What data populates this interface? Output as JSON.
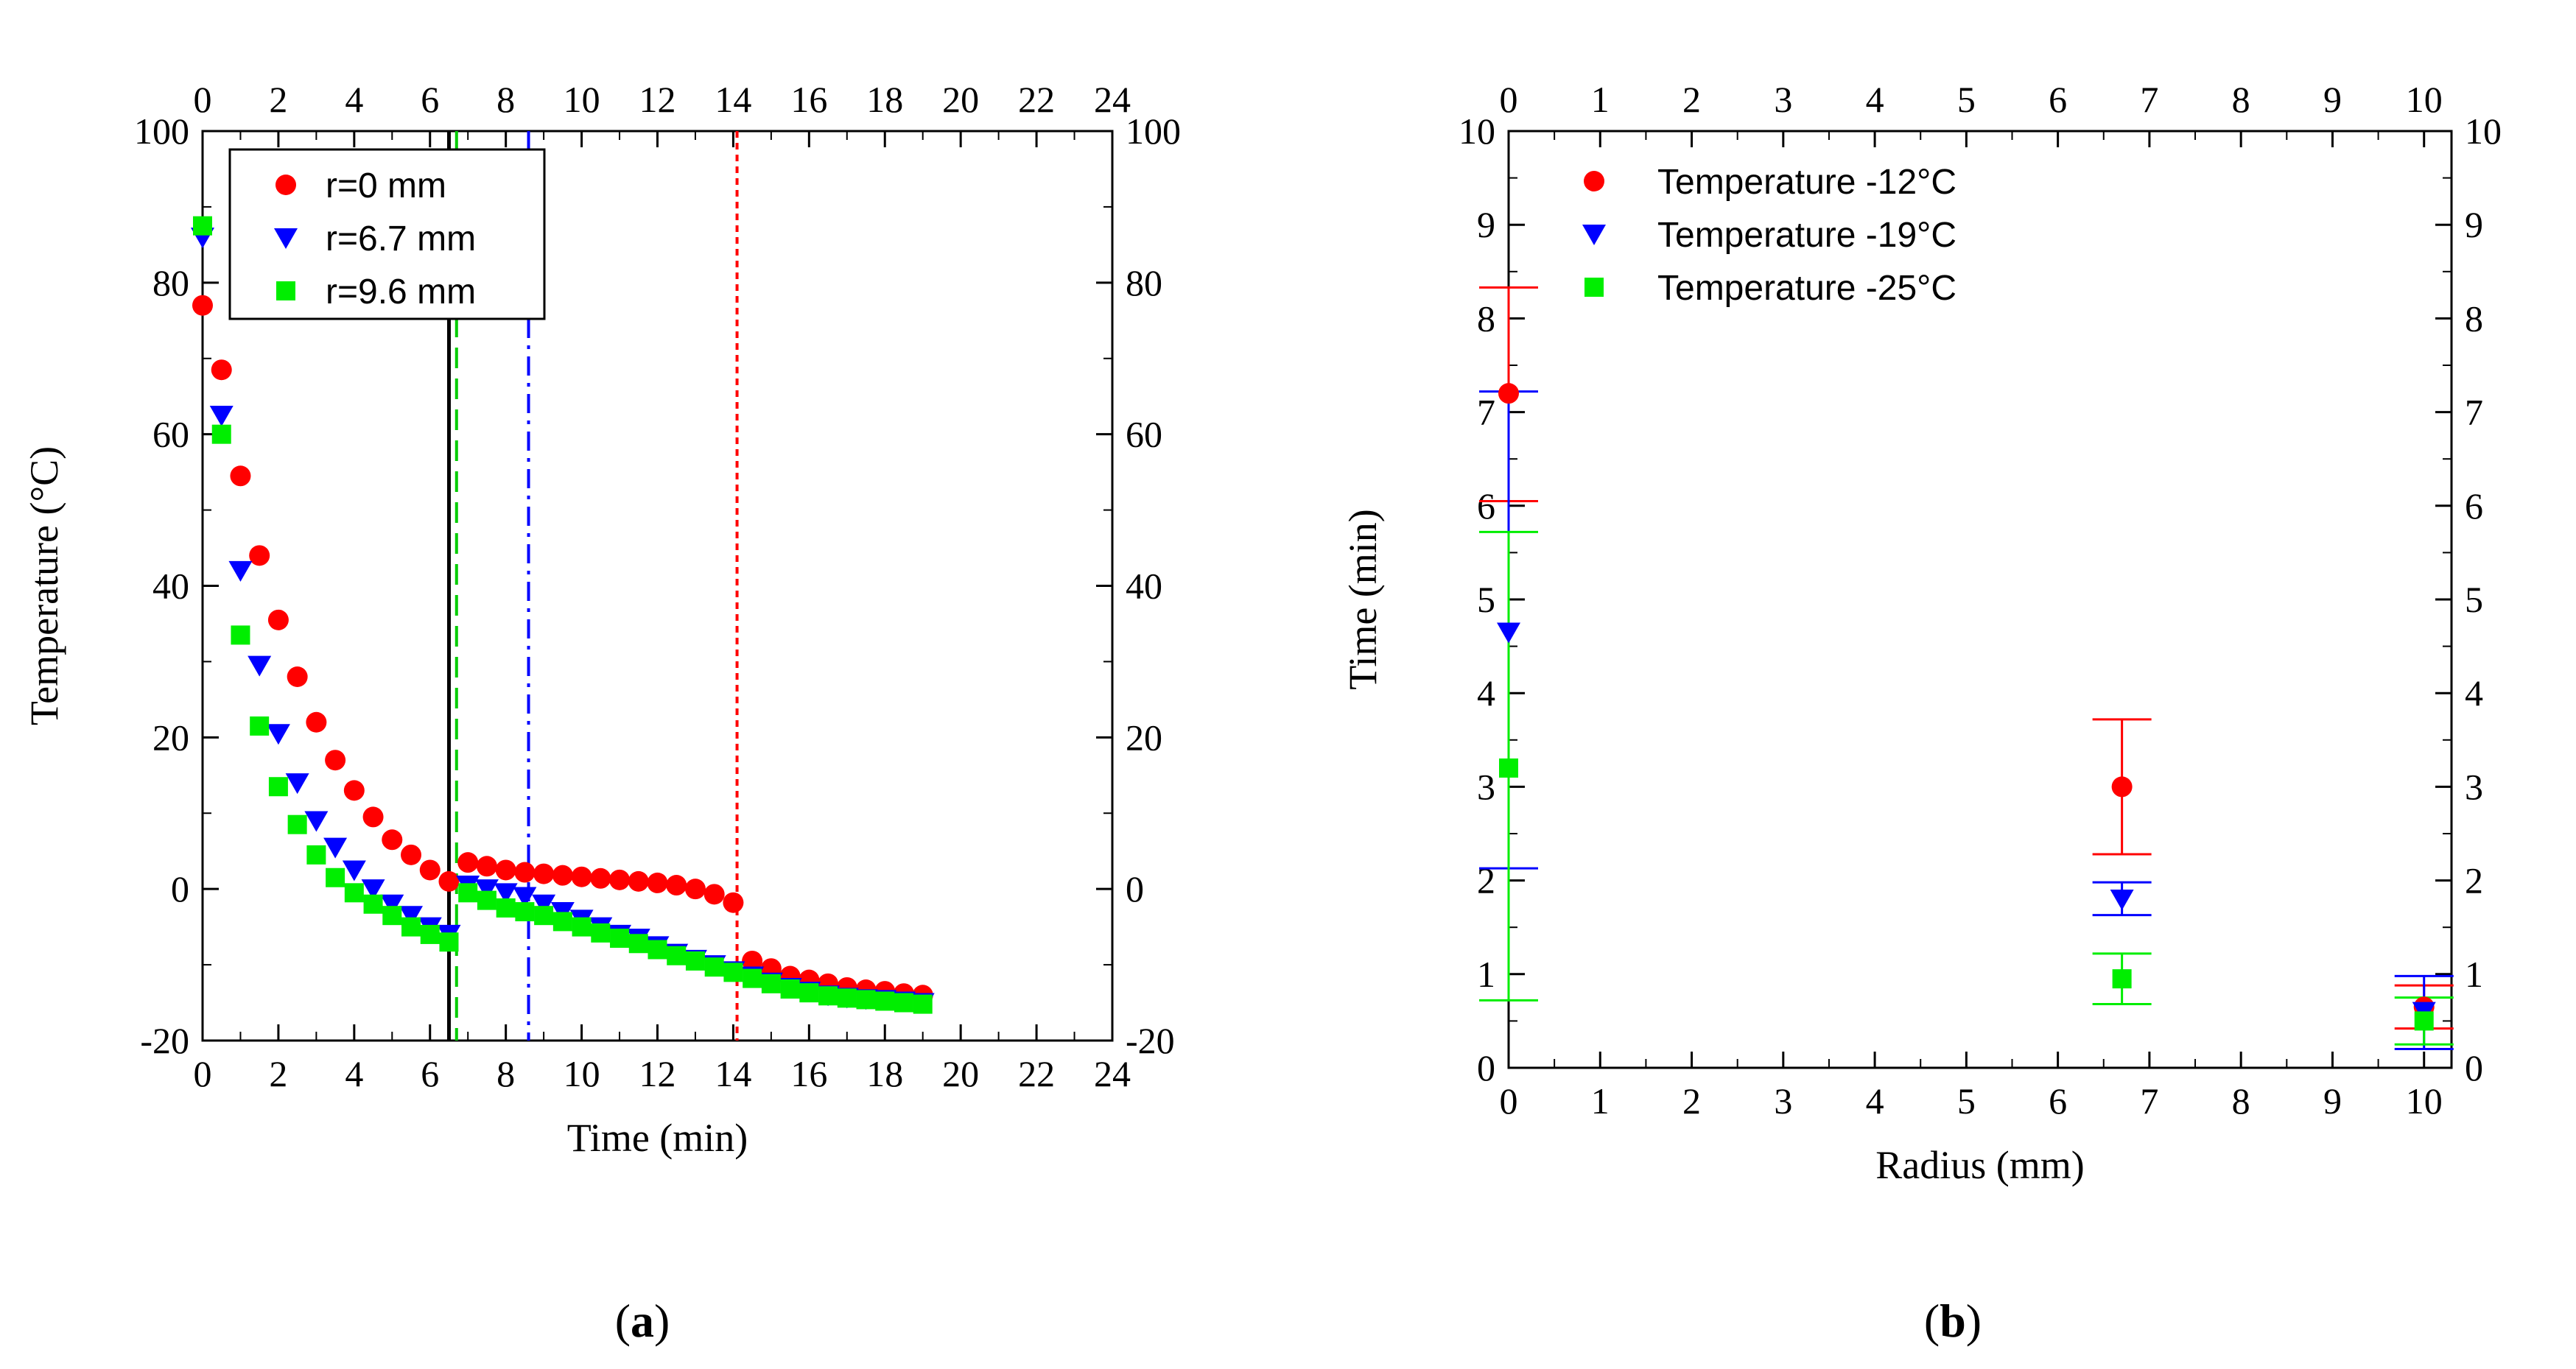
{
  "chart_data": [
    {
      "type": "scatter",
      "panel_label": {
        "open": "(",
        "letter": "a",
        "close": ")"
      },
      "xlabel": "Time (min)",
      "ylabel": "Temperature (°C)",
      "xlim": [
        0,
        24
      ],
      "ylim": [
        -20,
        100
      ],
      "x_ticks": [
        0,
        2,
        4,
        6,
        8,
        10,
        12,
        14,
        16,
        18,
        20,
        22,
        24
      ],
      "y_ticks": [
        -20,
        0,
        20,
        40,
        60,
        80,
        100
      ],
      "mirror_axes": true,
      "grid": false,
      "legend_position": "top-left",
      "series": [
        {
          "name": "r=0 mm",
          "color": "#ff0000",
          "marker": "circle",
          "x": [
            0,
            0.5,
            1,
            1.5,
            2,
            2.5,
            3,
            3.5,
            4,
            4.5,
            5,
            5.5,
            6,
            6.5,
            7,
            7.5,
            8,
            8.5,
            9,
            9.5,
            10,
            10.5,
            11,
            11.5,
            12,
            12.5,
            13,
            13.5,
            14,
            14.5,
            15,
            15.5,
            16,
            16.5,
            17,
            17.5,
            18,
            18.5,
            19
          ],
          "y": [
            77,
            68.5,
            54.5,
            44,
            35.5,
            28,
            22,
            17,
            13,
            9.5,
            6.5,
            4.5,
            2.5,
            1,
            3.5,
            3,
            2.5,
            2.2,
            2,
            1.8,
            1.6,
            1.4,
            1.2,
            1,
            0.8,
            0.5,
            0,
            -0.7,
            -1.8,
            -9.5,
            -10.5,
            -11.5,
            -12,
            -12.5,
            -13,
            -13.3,
            -13.5,
            -13.8,
            -14
          ]
        },
        {
          "name": "r=6.7 mm",
          "color": "#0000ff",
          "marker": "triangle-down",
          "x": [
            0,
            0.5,
            1,
            1.5,
            2,
            2.5,
            3,
            3.5,
            4,
            4.5,
            5,
            5.5,
            6,
            6.5,
            7,
            7.5,
            8,
            8.5,
            9,
            9.5,
            10,
            10.5,
            11,
            11.5,
            12,
            12.5,
            13,
            13.5,
            14,
            14.5,
            15,
            15.5,
            16,
            16.5,
            17,
            17.5,
            18,
            18.5,
            19
          ],
          "y": [
            86,
            62.5,
            42,
            29.5,
            20.5,
            14,
            9,
            5.5,
            2.5,
            0,
            -2,
            -3.5,
            -5,
            -6,
            0.5,
            0,
            -0.5,
            -1,
            -2,
            -3,
            -4,
            -5,
            -6,
            -6.5,
            -7.5,
            -8.5,
            -9.3,
            -10,
            -10.8,
            -11.5,
            -12.3,
            -13,
            -13.5,
            -14,
            -14.3,
            -14.5,
            -14.6,
            -14.8,
            -15
          ]
        },
        {
          "name": "r=9.6 mm",
          "color": "#00ee00",
          "marker": "square",
          "x": [
            0,
            0.5,
            1,
            1.5,
            2,
            2.5,
            3,
            3.5,
            4,
            4.5,
            5,
            5.5,
            6,
            6.5,
            7,
            7.5,
            8,
            8.5,
            9,
            9.5,
            10,
            10.5,
            11,
            11.5,
            12,
            12.5,
            13,
            13.5,
            14,
            14.5,
            15,
            15.5,
            16,
            16.5,
            17,
            17.5,
            18,
            18.5,
            19
          ],
          "y": [
            87.5,
            60,
            33.5,
            21.5,
            13.5,
            8.5,
            4.5,
            1.5,
            -0.5,
            -2,
            -3.5,
            -5,
            -6,
            -7,
            -0.5,
            -1.5,
            -2.5,
            -3,
            -3.5,
            -4.3,
            -5,
            -5.8,
            -6.5,
            -7.2,
            -8,
            -8.8,
            -9.5,
            -10.3,
            -11,
            -11.8,
            -12.5,
            -13.2,
            -13.7,
            -14.1,
            -14.4,
            -14.6,
            -14.8,
            -15,
            -15.2
          ]
        }
      ],
      "vlines": [
        {
          "x": 6.5,
          "color": "#000000",
          "style": "solid"
        },
        {
          "x": 6.7,
          "color": "#00cc00",
          "style": "dashed"
        },
        {
          "x": 8.6,
          "color": "#0000ff",
          "style": "dash-dot"
        },
        {
          "x": 14.1,
          "color": "#ff0000",
          "style": "dotted"
        }
      ]
    },
    {
      "type": "scatter",
      "panel_label": {
        "open": "(",
        "letter": "b",
        "close": ")"
      },
      "xlabel": "Radius (mm)",
      "ylabel": "Time (min)",
      "xlim": [
        0,
        10.3
      ],
      "ylim": [
        0,
        10
      ],
      "x_ticks": [
        0,
        1,
        2,
        3,
        4,
        5,
        6,
        7,
        8,
        9,
        10
      ],
      "y_ticks": [
        0,
        1,
        2,
        3,
        4,
        5,
        6,
        7,
        8,
        9,
        10
      ],
      "mirror_axes": true,
      "grid": false,
      "legend_position": "top-left",
      "series": [
        {
          "name": "Temperature -12°C",
          "color": "#ff0000",
          "marker": "circle",
          "x": [
            0,
            6.7,
            10
          ],
          "y": [
            7.2,
            3,
            0.65
          ],
          "err_low": [
            6.05,
            2.28,
            0.42
          ],
          "err_high": [
            8.33,
            3.72,
            0.88
          ]
        },
        {
          "name": "Temperature -19°C",
          "color": "#0000ff",
          "marker": "triangle-down",
          "x": [
            0,
            6.7,
            10
          ],
          "y": [
            4.65,
            1.8,
            0.6
          ],
          "err_low": [
            2.13,
            1.63,
            0.2
          ],
          "err_high": [
            7.22,
            1.98,
            0.98
          ]
        },
        {
          "name": "Temperature -25°C",
          "color": "#00ee00",
          "marker": "square",
          "x": [
            0,
            6.7,
            10
          ],
          "y": [
            3.2,
            0.95,
            0.5
          ],
          "err_low": [
            0.72,
            0.68,
            0.25
          ],
          "err_high": [
            5.72,
            1.22,
            0.75
          ]
        }
      ]
    }
  ]
}
